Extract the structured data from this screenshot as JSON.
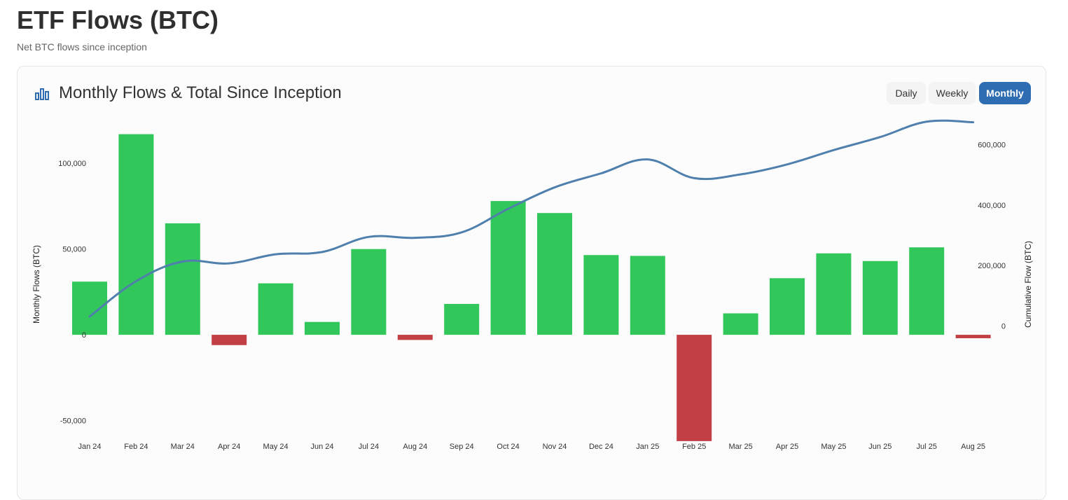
{
  "header": {
    "title": "ETF Flows (BTC)",
    "subtitle": "Net BTC flows since inception"
  },
  "card": {
    "title": "Monthly Flows & Total Since Inception",
    "icon": "bar-chart-icon",
    "toggles": [
      {
        "label": "Daily",
        "active": false
      },
      {
        "label": "Weekly",
        "active": false
      },
      {
        "label": "Monthly",
        "active": true
      }
    ]
  },
  "colors": {
    "positive": "#32c75a",
    "negative": "#c13f45",
    "line": "#4f80ad",
    "accent": "#2f6db3"
  },
  "chart_data": {
    "type": "bar",
    "categories": [
      "Jan 24",
      "Feb 24",
      "Mar 24",
      "Apr 24",
      "May 24",
      "Jun 24",
      "Jul 24",
      "Aug 24",
      "Sep 24",
      "Oct 24",
      "Nov 24",
      "Dec 24",
      "Jan 25",
      "Feb 25",
      "Mar 25",
      "Apr 25",
      "May 25",
      "Jun 25",
      "Jul 25",
      "Aug 25"
    ],
    "series": [
      {
        "type": "bar",
        "axis": "left",
        "values": [
          31000,
          117000,
          65000,
          -6000,
          30000,
          7500,
          50000,
          -3000,
          18000,
          78000,
          71000,
          46500,
          46000,
          -62000,
          12500,
          33000,
          47500,
          43000,
          51000,
          -2000
        ]
      },
      {
        "type": "line",
        "axis": "right",
        "values": [
          31000,
          148000,
          213000,
          207000,
          237000,
          244500,
          294500,
          291500,
          309500,
          387500,
          458500,
          505000,
          551000,
          489000,
          501500,
          534500,
          582000,
          625000,
          676000,
          674000
        ]
      }
    ],
    "ylabel": "Monthly Flows (BTC)",
    "y2label": "Cumulative Flow (BTC)",
    "ylim": [
      -60000,
      125000
    ],
    "y2lim": [
      -370000,
      680000
    ],
    "yticks": [
      {
        "value": 100000,
        "label": "100,000"
      },
      {
        "value": 50000,
        "label": "50,000"
      },
      {
        "value": 0,
        "label": "0"
      },
      {
        "value": -50000,
        "label": "-50,000"
      }
    ],
    "y2ticks": [
      {
        "value": 600000,
        "label": "600,000"
      },
      {
        "value": 400000,
        "label": "400,000"
      },
      {
        "value": 200000,
        "label": "200,000"
      },
      {
        "value": 0,
        "label": "0"
      }
    ],
    "grid": false,
    "legend": "none"
  }
}
